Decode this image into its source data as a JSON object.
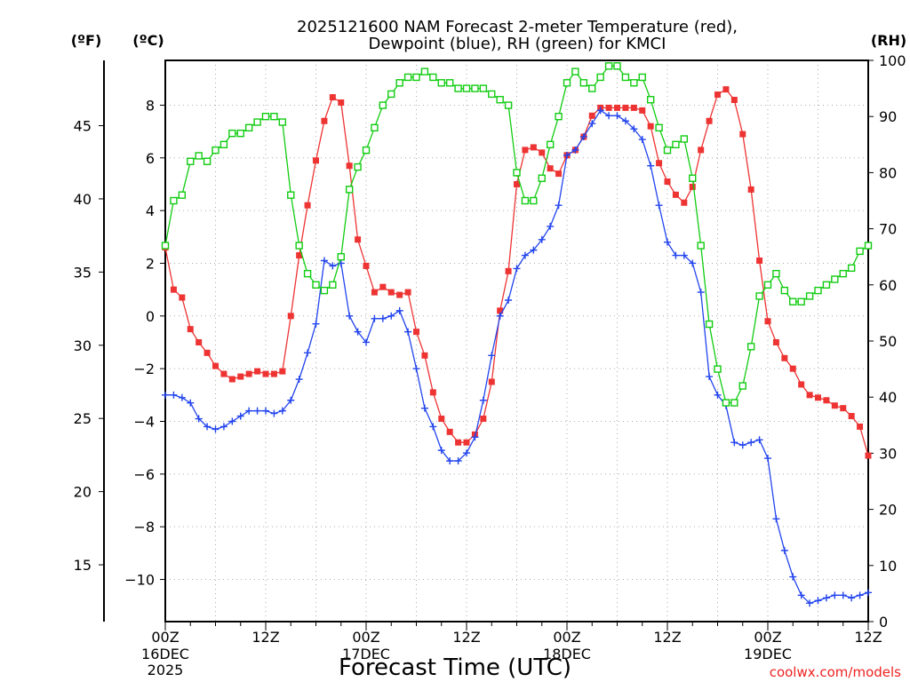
{
  "chart_data": {
    "type": "line",
    "title": {
      "line1": "2025121600 NAM Forecast 2-meter Temperature (red),",
      "line2": "Dewpoint (blue), RH (green) for KMCI"
    },
    "axis_unit_labels": {
      "fahrenheit": "(ºF)",
      "celsius": "(ºC)",
      "rh": "(RH)"
    },
    "xlabel": "Forecast Time (UTC)",
    "credit": "coolwx.com/models",
    "x_unit": "forecast hour",
    "xlim": [
      0,
      84
    ],
    "x_ticks": [
      {
        "hour": 0,
        "line1": "00Z",
        "line2": "16DEC",
        "line3": "2025"
      },
      {
        "hour": 12,
        "line1": "12Z",
        "line2": "",
        "line3": ""
      },
      {
        "hour": 24,
        "line1": "00Z",
        "line2": "17DEC",
        "line3": ""
      },
      {
        "hour": 36,
        "line1": "12Z",
        "line2": "",
        "line3": ""
      },
      {
        "hour": 48,
        "line1": "00Z",
        "line2": "18DEC",
        "line3": ""
      },
      {
        "hour": 60,
        "line1": "12Z",
        "line2": "",
        "line3": ""
      },
      {
        "hour": 72,
        "line1": "00Z",
        "line2": "19DEC",
        "line3": ""
      },
      {
        "hour": 84,
        "line1": "12Z",
        "line2": "",
        "line3": ""
      }
    ],
    "celsius_axis": {
      "ylim": [
        -11.6,
        9.7
      ],
      "ticks": [
        -10,
        -8,
        -6,
        -4,
        -2,
        0,
        2,
        4,
        6,
        8
      ]
    },
    "fahrenheit_axis": {
      "ticks": [
        15,
        20,
        25,
        30,
        35,
        40,
        45
      ]
    },
    "rh_axis": {
      "ylim": [
        0,
        100
      ],
      "ticks": [
        0,
        10,
        20,
        30,
        40,
        50,
        60,
        70,
        80,
        90,
        100
      ]
    },
    "grid": true,
    "colors": {
      "temperature": "#ee3333",
      "dewpoint": "#2244ee",
      "rh": "#11cc11",
      "credit": "#ee2222",
      "grid": "#aaaaaa",
      "axis": "#000000"
    },
    "series": [
      {
        "key": "temperature",
        "axis": "celsius",
        "marker": "filled-square",
        "hours": [
          0,
          1,
          2,
          3,
          4,
          5,
          6,
          7,
          8,
          9,
          10,
          11,
          12,
          13,
          14,
          15,
          16,
          17,
          18,
          19,
          20,
          21,
          22,
          23,
          24,
          25,
          26,
          27,
          28,
          29,
          30,
          31,
          32,
          33,
          34,
          35,
          36,
          37,
          38,
          39,
          40,
          41,
          42,
          43,
          44,
          45,
          46,
          47,
          48,
          49,
          50,
          51,
          52,
          53,
          54,
          55,
          56,
          57,
          58,
          59,
          60,
          61,
          62,
          63,
          64,
          65,
          66,
          67,
          68,
          69,
          70,
          71,
          72,
          73,
          74,
          75,
          76,
          77,
          78,
          79,
          80,
          81,
          82,
          83,
          84
        ],
        "values": [
          2.6,
          1.0,
          0.7,
          -0.5,
          -1.0,
          -1.4,
          -1.9,
          -2.2,
          -2.4,
          -2.3,
          -2.2,
          -2.1,
          -2.2,
          -2.2,
          -2.1,
          0.0,
          2.3,
          4.2,
          5.9,
          7.4,
          8.3,
          8.1,
          5.7,
          2.9,
          1.9,
          0.9,
          1.1,
          0.9,
          0.8,
          0.9,
          -0.6,
          -1.5,
          -2.9,
          -3.9,
          -4.4,
          -4.8,
          -4.8,
          -4.5,
          -3.9,
          -2.5,
          0.2,
          1.7,
          5.0,
          6.3,
          6.4,
          6.2,
          5.6,
          5.4,
          6.1,
          6.3,
          6.8,
          7.6,
          7.9,
          7.9,
          7.9,
          7.9,
          7.9,
          7.8,
          7.2,
          5.8,
          5.1,
          4.6,
          4.3,
          4.9,
          6.3,
          7.4,
          8.4,
          8.6,
          8.2,
          6.9,
          4.8,
          2.1,
          -0.2,
          -1.0,
          -1.6,
          -2.0,
          -2.6,
          -3.0,
          -3.1,
          -3.2,
          -3.4,
          -3.5,
          -3.8,
          -4.2,
          -5.3
        ]
      },
      {
        "key": "dewpoint",
        "axis": "celsius",
        "marker": "plus",
        "hours": [
          0,
          1,
          2,
          3,
          4,
          5,
          6,
          7,
          8,
          9,
          10,
          11,
          12,
          13,
          14,
          15,
          16,
          17,
          18,
          19,
          20,
          21,
          22,
          23,
          24,
          25,
          26,
          27,
          28,
          29,
          30,
          31,
          32,
          33,
          34,
          35,
          36,
          37,
          38,
          39,
          40,
          41,
          42,
          43,
          44,
          45,
          46,
          47,
          48,
          49,
          50,
          51,
          52,
          53,
          54,
          55,
          56,
          57,
          58,
          59,
          60,
          61,
          62,
          63,
          64,
          65,
          66,
          67,
          68,
          69,
          70,
          71,
          72,
          73,
          74,
          75,
          76,
          77,
          78,
          79,
          80,
          81,
          82,
          83,
          84
        ],
        "values": [
          -3.0,
          -3.0,
          -3.1,
          -3.3,
          -3.9,
          -4.2,
          -4.3,
          -4.2,
          -4.0,
          -3.8,
          -3.6,
          -3.6,
          -3.6,
          -3.7,
          -3.6,
          -3.2,
          -2.4,
          -1.4,
          -0.3,
          2.1,
          1.9,
          2.0,
          0.0,
          -0.6,
          -1.0,
          -0.1,
          -0.1,
          0.0,
          0.2,
          -0.6,
          -2.0,
          -3.5,
          -4.2,
          -5.1,
          -5.5,
          -5.5,
          -5.2,
          -4.6,
          -3.2,
          -1.5,
          0.0,
          0.6,
          1.8,
          2.3,
          2.5,
          2.9,
          3.4,
          4.2,
          6.1,
          6.3,
          6.8,
          7.3,
          7.8,
          7.6,
          7.6,
          7.4,
          7.1,
          6.7,
          5.7,
          4.2,
          2.8,
          2.3,
          2.3,
          2.0,
          0.9,
          -2.3,
          -3.0,
          -3.4,
          -4.8,
          -4.9,
          -4.8,
          -4.7,
          -5.4,
          -7.7,
          -8.9,
          -9.9,
          -10.6,
          -10.9,
          -10.8,
          -10.7,
          -10.6,
          -10.6,
          -10.7,
          -10.6,
          -10.5
        ]
      },
      {
        "key": "rh",
        "axis": "rh",
        "marker": "open-square",
        "hours": [
          0,
          1,
          2,
          3,
          4,
          5,
          6,
          7,
          8,
          9,
          10,
          11,
          12,
          13,
          14,
          15,
          16,
          17,
          18,
          19,
          20,
          21,
          22,
          23,
          24,
          25,
          26,
          27,
          28,
          29,
          30,
          31,
          32,
          33,
          34,
          35,
          36,
          37,
          38,
          39,
          40,
          41,
          42,
          43,
          44,
          45,
          46,
          47,
          48,
          49,
          50,
          51,
          52,
          53,
          54,
          55,
          56,
          57,
          58,
          59,
          60,
          61,
          62,
          63,
          64,
          65,
          66,
          67,
          68,
          69,
          70,
          71,
          72,
          73,
          74,
          75,
          76,
          77,
          78,
          79,
          80,
          81,
          82,
          83,
          84
        ],
        "values": [
          67,
          75,
          76,
          82,
          83,
          82,
          84,
          85,
          87,
          87,
          88,
          89,
          90,
          90,
          89,
          76,
          67,
          62,
          60,
          59,
          60,
          65,
          77,
          81,
          84,
          88,
          92,
          94,
          96,
          97,
          97,
          98,
          97,
          96,
          96,
          95,
          95,
          95,
          95,
          94,
          93,
          92,
          80,
          75,
          75,
          79,
          85,
          90,
          96,
          98,
          96,
          95,
          97,
          99,
          99,
          97,
          96,
          97,
          93,
          88,
          84,
          85,
          86,
          79,
          67,
          53,
          45,
          39,
          39,
          42,
          49,
          58,
          60,
          62,
          59,
          57,
          57,
          58,
          59,
          60,
          61,
          62,
          63,
          66,
          67
        ]
      }
    ]
  }
}
